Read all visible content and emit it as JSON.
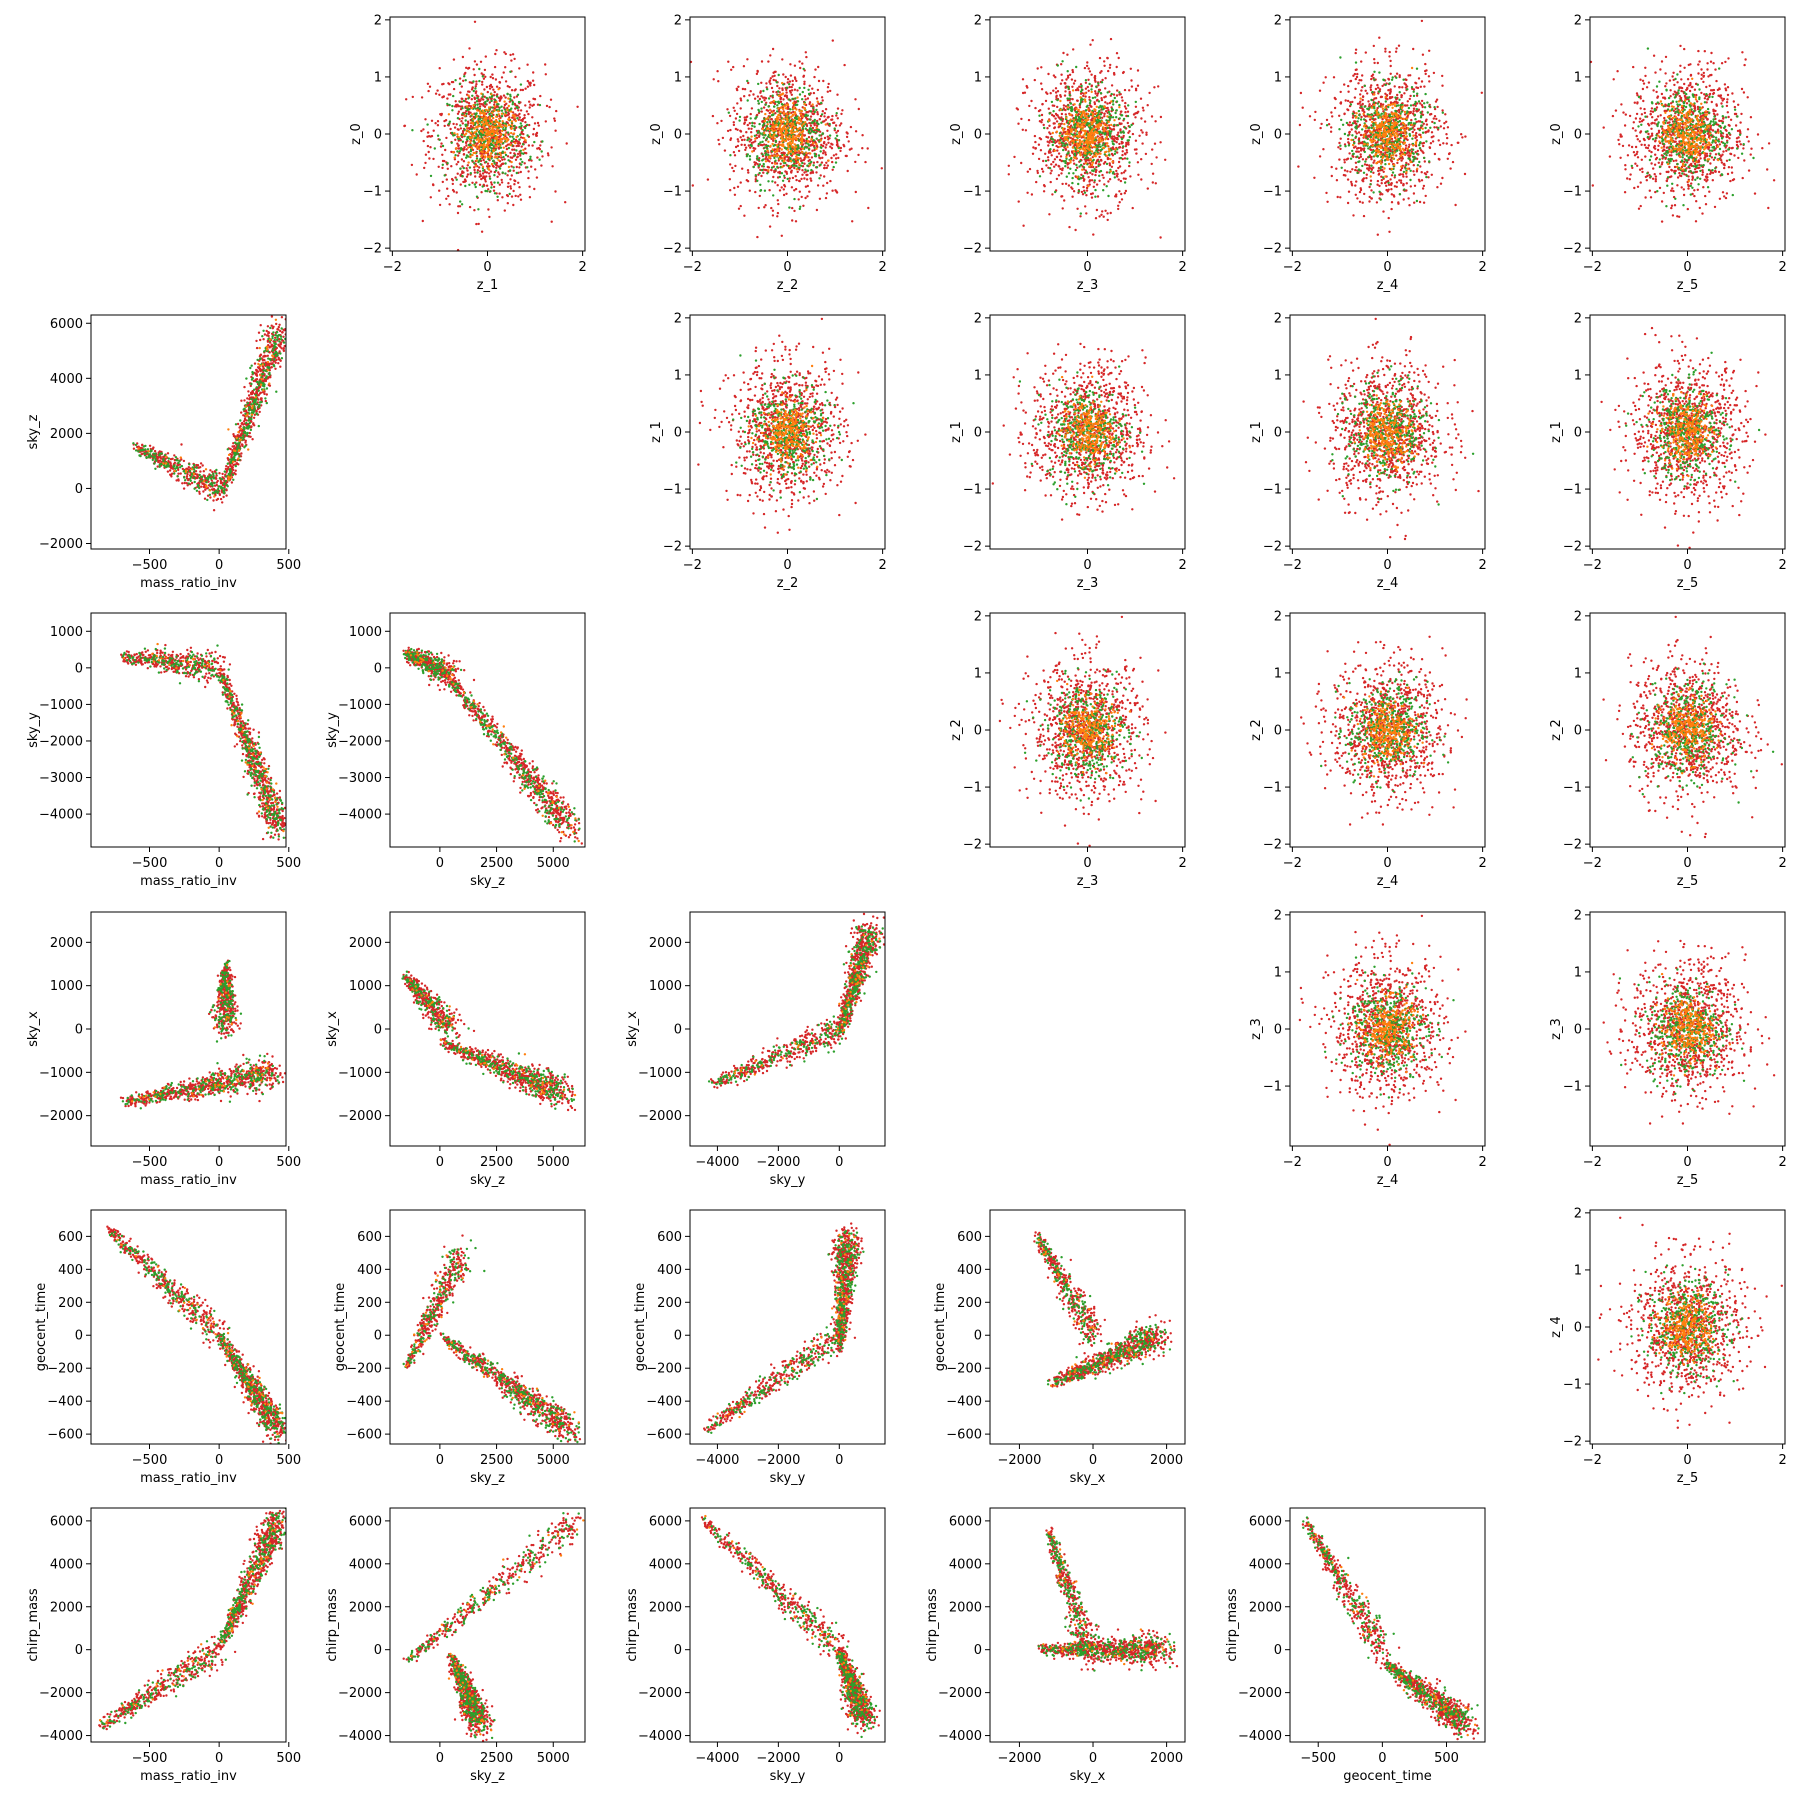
{
  "series_colors": {
    "green": "#2ca02c",
    "orange": "#ff7f0e",
    "red": "#d62728"
  },
  "chart_data": [
    {
      "type": "scatter",
      "panel": "r0c1",
      "xlabel": "z_1",
      "ylabel": "z_0",
      "xlim": [
        -2.05,
        2.05
      ],
      "ylim": [
        -2.05,
        2.05
      ],
      "xticks": [
        -2,
        0,
        2
      ],
      "yticks": [
        -2,
        -1,
        0,
        1,
        2
      ],
      "shape": {
        "kind": "gauss",
        "sx": 0.6,
        "sy": 0.6
      }
    },
    {
      "type": "scatter",
      "panel": "r0c2",
      "xlabel": "z_2",
      "ylabel": "z_0",
      "xlim": [
        -2.05,
        2.05
      ],
      "ylim": [
        -2.05,
        2.05
      ],
      "xticks": [
        -2,
        0,
        2
      ],
      "yticks": [
        -2,
        -1,
        0,
        1,
        2
      ],
      "shape": {
        "kind": "gauss",
        "sx": 0.6,
        "sy": 0.6
      }
    },
    {
      "type": "scatter",
      "panel": "r0c3",
      "xlabel": "z_3",
      "ylabel": "z_0",
      "xlim": [
        -2.05,
        2.05
      ],
      "ylim": [
        -2.05,
        2.05
      ],
      "xticks": [
        0,
        2
      ],
      "yticks": [
        -2,
        -1,
        0,
        1,
        2
      ],
      "shape": {
        "kind": "gauss",
        "sx": 0.6,
        "sy": 0.6
      }
    },
    {
      "type": "scatter",
      "panel": "r0c4",
      "xlabel": "z_4",
      "ylabel": "z_0",
      "xlim": [
        -2.05,
        2.05
      ],
      "ylim": [
        -2.05,
        2.05
      ],
      "xticks": [
        -2,
        0,
        2
      ],
      "yticks": [
        -2,
        -1,
        0,
        1,
        2
      ],
      "shape": {
        "kind": "gauss",
        "sx": 0.6,
        "sy": 0.6
      }
    },
    {
      "type": "scatter",
      "panel": "r0c5",
      "xlabel": "z_5",
      "ylabel": "z_0",
      "xlim": [
        -2.05,
        2.05
      ],
      "ylim": [
        -2.05,
        2.05
      ],
      "xticks": [
        -2,
        0,
        2
      ],
      "yticks": [
        -2,
        -1,
        0,
        1,
        2
      ],
      "shape": {
        "kind": "gauss",
        "sx": 0.6,
        "sy": 0.6
      }
    },
    {
      "type": "scatter",
      "panel": "r1c0",
      "xlabel": "mass_ratio_inv",
      "ylabel": "sky_z",
      "xlim": [
        -920,
        480
      ],
      "ylim": [
        -2200,
        6300
      ],
      "xticks": [
        -500,
        0,
        500
      ],
      "yticks": [
        -2000,
        0,
        2000,
        4000,
        6000
      ],
      "shape": {
        "kind": "piecewise",
        "a1": [
          -600,
          1500
        ],
        "b1": [
          0,
          0
        ],
        "a2": [
          0,
          -500
        ],
        "b2": [
          430,
          5800
        ]
      }
    },
    {
      "type": "scatter",
      "panel": "r1c2",
      "xlabel": "z_2",
      "ylabel": "z_1",
      "xlim": [
        -2.05,
        2.05
      ],
      "ylim": [
        -2.05,
        2.05
      ],
      "xticks": [
        -2,
        0,
        2
      ],
      "yticks": [
        -2,
        -1,
        0,
        1,
        2
      ],
      "shape": {
        "kind": "gauss",
        "sx": 0.6,
        "sy": 0.6
      }
    },
    {
      "type": "scatter",
      "panel": "r1c3",
      "xlabel": "z_3",
      "ylabel": "z_1",
      "xlim": [
        -2.05,
        2.05
      ],
      "ylim": [
        -2.05,
        2.05
      ],
      "xticks": [
        0,
        2
      ],
      "yticks": [
        -2,
        -1,
        0,
        1,
        2
      ],
      "shape": {
        "kind": "gauss",
        "sx": 0.6,
        "sy": 0.6
      }
    },
    {
      "type": "scatter",
      "panel": "r1c4",
      "xlabel": "z_4",
      "ylabel": "z_1",
      "xlim": [
        -2.05,
        2.05
      ],
      "ylim": [
        -2.05,
        2.05
      ],
      "xticks": [
        -2,
        0,
        2
      ],
      "yticks": [
        -2,
        -1,
        0,
        1,
        2
      ],
      "shape": {
        "kind": "gauss",
        "sx": 0.6,
        "sy": 0.6
      }
    },
    {
      "type": "scatter",
      "panel": "r1c5",
      "xlabel": "z_5",
      "ylabel": "z_1",
      "xlim": [
        -2.05,
        2.05
      ],
      "ylim": [
        -2.05,
        2.05
      ],
      "xticks": [
        -2,
        0,
        2
      ],
      "yticks": [
        -2,
        -1,
        0,
        1,
        2
      ],
      "shape": {
        "kind": "gauss",
        "sx": 0.6,
        "sy": 0.6
      }
    },
    {
      "type": "scatter",
      "panel": "r2c0",
      "xlabel": "mass_ratio_inv",
      "ylabel": "sky_y",
      "xlim": [
        -920,
        480
      ],
      "ylim": [
        -4900,
        1500
      ],
      "xticks": [
        -500,
        0,
        500
      ],
      "yticks": [
        -4000,
        -3000,
        -2000,
        -1000,
        0,
        1000
      ],
      "shape": {
        "kind": "piecewise",
        "a1": [
          -700,
          300
        ],
        "b1": [
          0,
          0
        ],
        "a2": [
          0,
          0
        ],
        "b2": [
          430,
          -4400
        ]
      }
    },
    {
      "type": "scatter",
      "panel": "r2c1",
      "xlabel": "sky_z",
      "ylabel": "sky_y",
      "xlim": [
        -2200,
        6400
      ],
      "ylim": [
        -4900,
        1500
      ],
      "xticks": [
        0,
        2500,
        5000
      ],
      "yticks": [
        -4000,
        -3000,
        -2000,
        -1000,
        0,
        1000
      ],
      "shape": {
        "kind": "piecewise",
        "a1": [
          -1500,
          400
        ],
        "b1": [
          500,
          -200
        ],
        "a2": [
          0,
          0
        ],
        "b2": [
          5800,
          -4400
        ]
      }
    },
    {
      "type": "scatter",
      "panel": "r2c3",
      "xlabel": "z_3",
      "ylabel": "z_2",
      "xlim": [
        -2.05,
        2.05
      ],
      "ylim": [
        -2.05,
        2.05
      ],
      "xticks": [
        0,
        2
      ],
      "yticks": [
        -2,
        -1,
        0,
        1,
        2
      ],
      "shape": {
        "kind": "gauss",
        "sx": 0.6,
        "sy": 0.6
      }
    },
    {
      "type": "scatter",
      "panel": "r2c4",
      "xlabel": "z_4",
      "ylabel": "z_2",
      "xlim": [
        -2.05,
        2.05
      ],
      "ylim": [
        -2.05,
        2.05
      ],
      "xticks": [
        -2,
        0,
        2
      ],
      "yticks": [
        -2,
        -1,
        0,
        1,
        2
      ],
      "shape": {
        "kind": "gauss",
        "sx": 0.6,
        "sy": 0.6
      }
    },
    {
      "type": "scatter",
      "panel": "r2c5",
      "xlabel": "z_5",
      "ylabel": "z_2",
      "xlim": [
        -2.05,
        2.05
      ],
      "ylim": [
        -2.05,
        2.05
      ],
      "xticks": [
        -2,
        0,
        2
      ],
      "yticks": [
        -2,
        -1,
        0,
        1,
        2
      ],
      "shape": {
        "kind": "gauss",
        "sx": 0.6,
        "sy": 0.6
      }
    },
    {
      "type": "scatter",
      "panel": "r3c0",
      "xlabel": "mass_ratio_inv",
      "ylabel": "sky_x",
      "xlim": [
        -920,
        480
      ],
      "ylim": [
        -2700,
        2700
      ],
      "xticks": [
        -500,
        0,
        500
      ],
      "yticks": [
        -2000,
        -1000,
        0,
        1000,
        2000
      ],
      "shape": {
        "kind": "piecewise",
        "a1": [
          50,
          1500
        ],
        "b1": [
          50,
          0
        ],
        "a2": [
          -700,
          -1700
        ],
        "b2": [
          400,
          -1000
        ]
      }
    },
    {
      "type": "scatter",
      "panel": "r3c1",
      "xlabel": "sky_z",
      "ylabel": "sky_x",
      "xlim": [
        -2200,
        6400
      ],
      "ylim": [
        -2700,
        2700
      ],
      "xticks": [
        0,
        2500,
        5000
      ],
      "yticks": [
        -2000,
        -1000,
        0,
        1000,
        2000
      ],
      "shape": {
        "kind": "piecewise",
        "a1": [
          -1500,
          1200
        ],
        "b1": [
          500,
          0
        ],
        "a2": [
          0,
          -300
        ],
        "b2": [
          5500,
          -1500
        ]
      }
    },
    {
      "type": "scatter",
      "panel": "r3c2",
      "xlabel": "sky_y",
      "ylabel": "sky_x",
      "xlim": [
        -4900,
        1500
      ],
      "ylim": [
        -2700,
        2700
      ],
      "xticks": [
        -4000,
        -2000,
        0
      ],
      "yticks": [
        -2000,
        -1000,
        0,
        1000,
        2000
      ],
      "shape": {
        "kind": "piecewise",
        "a1": [
          -4200,
          -1300
        ],
        "b1": [
          0,
          0
        ],
        "a2": [
          0,
          -200
        ],
        "b2": [
          1000,
          2300
        ]
      }
    },
    {
      "type": "scatter",
      "panel": "r3c4",
      "xlabel": "z_4",
      "ylabel": "z_3",
      "xlim": [
        -2.05,
        2.05
      ],
      "ylim": [
        -2.05,
        2.05
      ],
      "xticks": [
        -2,
        0,
        2
      ],
      "yticks": [
        -1,
        0,
        1,
        2
      ],
      "shape": {
        "kind": "gauss",
        "sx": 0.6,
        "sy": 0.6
      }
    },
    {
      "type": "scatter",
      "panel": "r3c5",
      "xlabel": "z_5",
      "ylabel": "z_3",
      "xlim": [
        -2.05,
        2.05
      ],
      "ylim": [
        -2.05,
        2.05
      ],
      "xticks": [
        -2,
        0,
        2
      ],
      "yticks": [
        -1,
        0,
        1,
        2
      ],
      "shape": {
        "kind": "gauss",
        "sx": 0.6,
        "sy": 0.6
      }
    },
    {
      "type": "scatter",
      "panel": "r4c0",
      "xlabel": "mass_ratio_inv",
      "ylabel": "geocent_time",
      "xlim": [
        -920,
        480
      ],
      "ylim": [
        -660,
        760
      ],
      "xticks": [
        -500,
        0,
        500
      ],
      "yticks": [
        -600,
        -400,
        -200,
        0,
        200,
        400,
        600
      ],
      "shape": {
        "kind": "piecewise",
        "a1": [
          -800,
          650
        ],
        "b1": [
          0,
          0
        ],
        "a2": [
          0,
          0
        ],
        "b2": [
          430,
          -580
        ]
      }
    },
    {
      "type": "scatter",
      "panel": "r4c1",
      "xlabel": "sky_z",
      "ylabel": "geocent_time",
      "xlim": [
        -2200,
        6400
      ],
      "ylim": [
        -660,
        760
      ],
      "xticks": [
        0,
        2500,
        5000
      ],
      "yticks": [
        -600,
        -400,
        -200,
        0,
        200,
        400,
        600
      ],
      "shape": {
        "kind": "piecewise",
        "a1": [
          -1500,
          -200
        ],
        "b1": [
          1000,
          500
        ],
        "a2": [
          0,
          0
        ],
        "b2": [
          5800,
          -580
        ]
      }
    },
    {
      "type": "scatter",
      "panel": "r4c2",
      "xlabel": "sky_y",
      "ylabel": "geocent_time",
      "xlim": [
        -4900,
        1500
      ],
      "ylim": [
        -660,
        760
      ],
      "xticks": [
        -4000,
        -2000,
        0
      ],
      "yticks": [
        -600,
        -400,
        -200,
        0,
        200,
        400,
        600
      ],
      "shape": {
        "kind": "piecewise",
        "a1": [
          -4400,
          -580
        ],
        "b1": [
          0,
          0
        ],
        "a2": [
          0,
          -100
        ],
        "b2": [
          300,
          600
        ]
      }
    },
    {
      "type": "scatter",
      "panel": "r4c3",
      "xlabel": "sky_x",
      "ylabel": "geocent_time",
      "xlim": [
        -2800,
        2500
      ],
      "ylim": [
        -660,
        760
      ],
      "xticks": [
        -2000,
        0,
        2000
      ],
      "yticks": [
        -600,
        -400,
        -200,
        0,
        200,
        400,
        600
      ],
      "shape": {
        "kind": "piecewise",
        "a1": [
          -1500,
          600
        ],
        "b1": [
          0,
          0
        ],
        "a2": [
          -1200,
          -300
        ],
        "b2": [
          1800,
          0
        ]
      }
    },
    {
      "type": "scatter",
      "panel": "r4c5",
      "xlabel": "z_5",
      "ylabel": "z_4",
      "xlim": [
        -2.05,
        2.05
      ],
      "ylim": [
        -2.05,
        2.05
      ],
      "xticks": [
        -2,
        0,
        2
      ],
      "yticks": [
        -2,
        -1,
        0,
        1,
        2
      ],
      "shape": {
        "kind": "gauss",
        "sx": 0.6,
        "sy": 0.6
      }
    },
    {
      "type": "scatter",
      "panel": "r5c0",
      "xlabel": "mass_ratio_inv",
      "ylabel": "chirp_mass",
      "xlim": [
        -920,
        480
      ],
      "ylim": [
        -4300,
        6600
      ],
      "xticks": [
        -500,
        0,
        500
      ],
      "yticks": [
        -4000,
        -2000,
        0,
        2000,
        4000,
        6000
      ],
      "shape": {
        "kind": "piecewise",
        "a1": [
          -850,
          -3600
        ],
        "b1": [
          0,
          0
        ],
        "a2": [
          0,
          0
        ],
        "b2": [
          430,
          6100
        ]
      }
    },
    {
      "type": "scatter",
      "panel": "r5c1",
      "xlabel": "sky_z",
      "ylabel": "chirp_mass",
      "xlim": [
        -2200,
        6400
      ],
      "ylim": [
        -4300,
        6600
      ],
      "xticks": [
        0,
        2500,
        5000
      ],
      "yticks": [
        -4000,
        -2000,
        0,
        2000,
        4000,
        6000
      ],
      "shape": {
        "kind": "piecewise",
        "a1": [
          -1500,
          -600
        ],
        "b1": [
          6000,
          6000
        ],
        "a2": [
          500,
          -300
        ],
        "b2": [
          1800,
          -3500
        ]
      }
    },
    {
      "type": "scatter",
      "panel": "r5c2",
      "xlabel": "sky_y",
      "ylabel": "chirp_mass",
      "xlim": [
        -4900,
        1500
      ],
      "ylim": [
        -4300,
        6600
      ],
      "xticks": [
        -4000,
        -2000,
        0
      ],
      "yticks": [
        -4000,
        -2000,
        0,
        2000,
        4000,
        6000
      ],
      "shape": {
        "kind": "piecewise",
        "a1": [
          -4500,
          6100
        ],
        "b1": [
          0,
          0
        ],
        "a2": [
          0,
          0
        ],
        "b2": [
          800,
          -3200
        ]
      }
    },
    {
      "type": "scatter",
      "panel": "r5c3",
      "xlabel": "sky_x",
      "ylabel": "chirp_mass",
      "xlim": [
        -2800,
        2500
      ],
      "ylim": [
        -4300,
        6600
      ],
      "xticks": [
        -2000,
        0,
        2000
      ],
      "yticks": [
        -4000,
        -2000,
        0,
        2000,
        4000,
        6000
      ],
      "shape": {
        "kind": "piecewise",
        "a1": [
          -1200,
          5500
        ],
        "b1": [
          0,
          -500
        ],
        "a2": [
          -1500,
          0
        ],
        "b2": [
          2000,
          0
        ]
      }
    },
    {
      "type": "scatter",
      "panel": "r5c4",
      "xlabel": "geocent_time",
      "ylabel": "chirp_mass",
      "xlim": [
        -720,
        800
      ],
      "ylim": [
        -4300,
        6600
      ],
      "xticks": [
        -500,
        0,
        500
      ],
      "yticks": [
        -4000,
        -2000,
        0,
        2000,
        4000,
        6000
      ],
      "shape": {
        "kind": "piecewise",
        "a1": [
          -600,
          6000
        ],
        "b1": [
          0,
          0
        ],
        "a2": [
          0,
          -500
        ],
        "b2": [
          650,
          -3500
        ]
      }
    }
  ]
}
